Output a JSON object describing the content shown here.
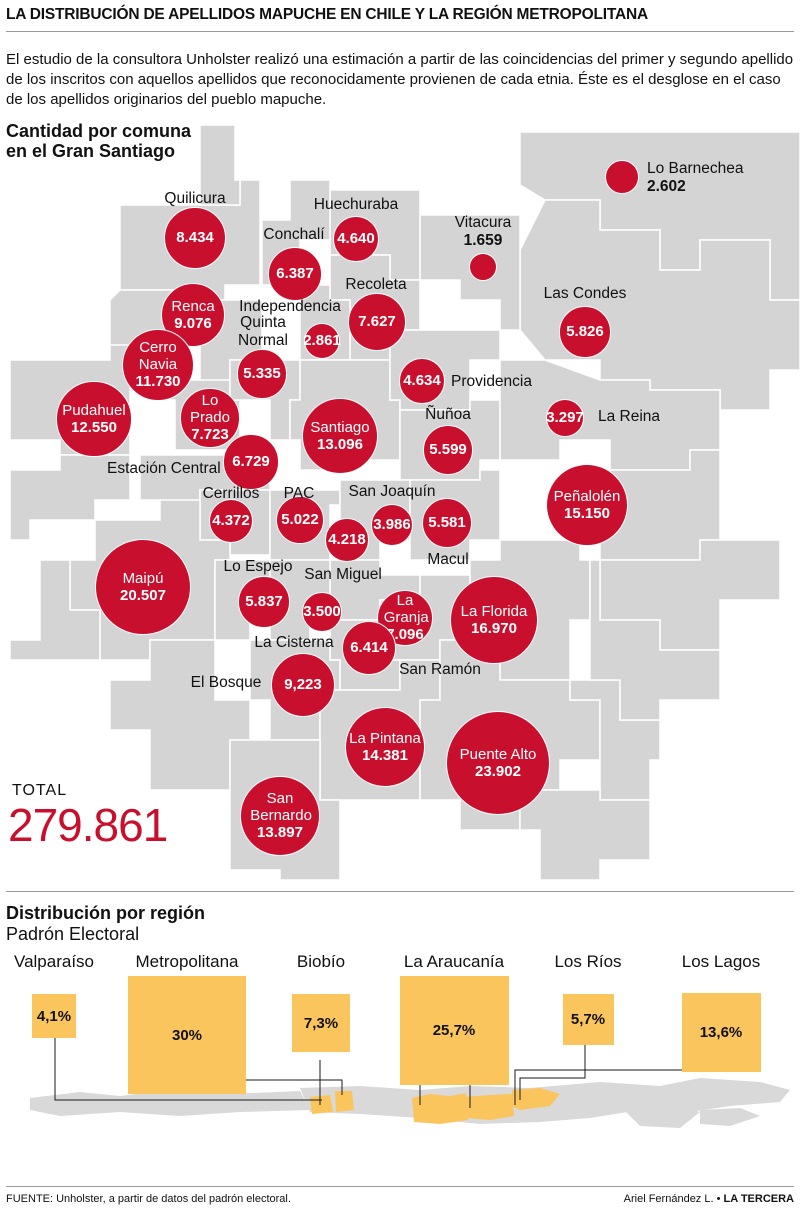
{
  "title": "LA DISTRIBUCIÓN DE APELLIDOS MAPUCHE EN CHILE Y LA REGIÓN METROPOLITANA",
  "intro": "El estudio de la consultora Unholster realizó una estimación a partir de las coincidencias del primer y segundo apellido de los inscritos con aquellos apellidos que reconocidamente provienen de cada etnia. Éste es el desglose en el caso de los apellidos originarios del pueblo mapuche.",
  "santiago_heading_1": "Cantidad por comuna",
  "santiago_heading_2": "en el Gran Santiago",
  "total_label": "TOTAL",
  "total_value": "279.861",
  "region_heading": "Distribución por región",
  "region_subheading": "Padrón Electoral",
  "source": "FUENTE: Unholster, a partir de datos del padrón electoral.",
  "credit_author": "Ariel Fernández L.",
  "credit_pub": "LA TERCERA",
  "colors": {
    "bubble": "#c8102e",
    "map_fill": "#d4d4d4",
    "region_fill": "#fbc55e",
    "total": "#c8102e"
  },
  "comunas": [
    {
      "id": "lo-barnechea",
      "name": "Lo Barnechea",
      "value": "2.602",
      "n": 2602
    },
    {
      "id": "quilicura",
      "name": "Quilicura",
      "value": "8.434",
      "n": 8434
    },
    {
      "id": "huechuraba",
      "name": "Huechuraba",
      "value": "4.640",
      "n": 4640
    },
    {
      "id": "vitacura",
      "name": "Vitacura",
      "value": "1.659",
      "n": 1659
    },
    {
      "id": "conchali",
      "name": "Conchalí",
      "value": "6.387",
      "n": 6387
    },
    {
      "id": "recoleta",
      "name": "Recoleta",
      "value": "7.627",
      "n": 7627
    },
    {
      "id": "las-condes",
      "name": "Las Condes",
      "value": "5.826",
      "n": 5826
    },
    {
      "id": "renca",
      "name": "Renca",
      "value": "9.076",
      "n": 9076
    },
    {
      "id": "independencia",
      "name": "Independencia",
      "value": "2.861",
      "n": 2861
    },
    {
      "id": "cerro-navia",
      "name": "Cerro Navia",
      "value": "11.730",
      "n": 11730
    },
    {
      "id": "quinta-normal",
      "name": "Quinta Normal",
      "value": "5.335",
      "n": 5335
    },
    {
      "id": "providencia",
      "name": "Providencia",
      "value": "4.634",
      "n": 4634
    },
    {
      "id": "pudahuel",
      "name": "Pudahuel",
      "value": "12.550",
      "n": 12550
    },
    {
      "id": "lo-prado",
      "name": "Lo Prado",
      "value": "7.723",
      "n": 7723
    },
    {
      "id": "santiago",
      "name": "Santiago",
      "value": "13.096",
      "n": 13096
    },
    {
      "id": "nunoa",
      "name": "Ñuñoa",
      "value": "5.599",
      "n": 5599
    },
    {
      "id": "la-reina",
      "name": "La Reina",
      "value": "3.297",
      "n": 3297
    },
    {
      "id": "estacion-central",
      "name": "Estación Central",
      "value": "6.729",
      "n": 6729
    },
    {
      "id": "penalolen",
      "name": "Peñalolén",
      "value": "15.150",
      "n": 15150
    },
    {
      "id": "cerrillos",
      "name": "Cerrillos",
      "value": "4.372",
      "n": 4372
    },
    {
      "id": "pac",
      "name": "PAC",
      "value": "5.022",
      "n": 5022
    },
    {
      "id": "san-joaquin",
      "name": "San Joaquín",
      "value": "3.986",
      "n": 3986
    },
    {
      "id": "macul",
      "name": "Macul",
      "value": "5.581",
      "n": 5581
    },
    {
      "id": "san-miguel",
      "name": "San Miguel",
      "value": "4.218",
      "n": 4218
    },
    {
      "id": "maipu",
      "name": "Maipú",
      "value": "20.507",
      "n": 20507
    },
    {
      "id": "lo-espejo",
      "name": "Lo Espejo",
      "value": "5.837",
      "n": 5837
    },
    {
      "id": "la-cisterna",
      "name": "La Cisterna",
      "value": "3.500",
      "n": 3500
    },
    {
      "id": "la-granja",
      "name": "La Granja",
      "value": "7.096",
      "n": 7096
    },
    {
      "id": "la-florida",
      "name": "La Florida",
      "value": "16.970",
      "n": 16970
    },
    {
      "id": "san-ramon",
      "name": "San Ramón",
      "value": "6.414",
      "n": 6414
    },
    {
      "id": "el-bosque",
      "name": "El Bosque",
      "value": "9,223",
      "n": 9223
    },
    {
      "id": "la-pintana",
      "name": "La Pintana",
      "value": "14.381",
      "n": 14381
    },
    {
      "id": "puente-alto",
      "name": "Puente Alto",
      "value": "23.902",
      "n": 23902
    },
    {
      "id": "san-bernardo",
      "name": "San Bernardo",
      "value": "13.897",
      "n": 13897
    }
  ],
  "regiones": [
    {
      "id": "valparaiso",
      "name": "Valparaíso",
      "value": "4,1%",
      "pct": 4.1
    },
    {
      "id": "metropolitana",
      "name": "Metropolitana",
      "value": "30%",
      "pct": 30
    },
    {
      "id": "biobio",
      "name": "Biobío",
      "value": "7,3%",
      "pct": 7.3
    },
    {
      "id": "araucania",
      "name": "La Araucanía",
      "value": "25,7%",
      "pct": 25.7
    },
    {
      "id": "los-rios",
      "name": "Los Ríos",
      "value": "5,7%",
      "pct": 5.7
    },
    {
      "id": "los-lagos",
      "name": "Los Lagos",
      "value": "13,6%",
      "pct": 13.6
    }
  ]
}
